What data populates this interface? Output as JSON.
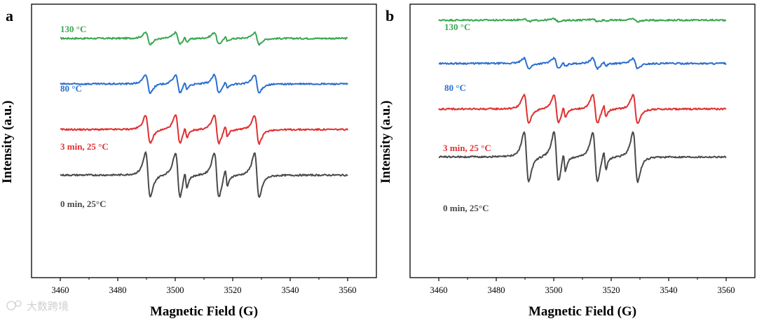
{
  "figure": {
    "watermark": "大数跨境"
  },
  "chart_data": [
    {
      "type": "line",
      "panel": "a",
      "xlabel": "Magnetic Field (G)",
      "ylabel": "Intensity (a.u.)",
      "xlim": [
        3450,
        3570
      ],
      "xticks": [
        3460,
        3480,
        3500,
        3520,
        3540,
        3560
      ],
      "ylim": [
        -7.5,
        4.5
      ],
      "yticks_shown": false,
      "lines": [
        {
          "field": 3490.5,
          "width": 1.4,
          "amp": 1.0
        },
        {
          "field": 3500.9,
          "width": 1.4,
          "amp": 1.0
        },
        {
          "field": 3503.7,
          "width": 0.7,
          "amp": 0.4
        },
        {
          "field": 3514.4,
          "width": 1.4,
          "amp": 1.0
        },
        {
          "field": 3517.8,
          "width": 0.7,
          "amp": 0.4
        },
        {
          "field": 3528.4,
          "width": 1.4,
          "amp": 1.0
        }
      ],
      "series": [
        {
          "name": "130 °C",
          "color": "#3aa852",
          "baseline": 3.0,
          "scale": 0.25
        },
        {
          "name": "80 °C",
          "color": "#2a6fd0",
          "baseline": 1.0,
          "scale": 0.38
        },
        {
          "name": "3 min, 25 °C",
          "color": "#e03030",
          "baseline": -1.0,
          "scale": 0.6
        },
        {
          "name": "0 min, 25°C",
          "color": "#4a4a4a",
          "baseline": -3.0,
          "scale": 0.95
        }
      ]
    },
    {
      "type": "line",
      "panel": "b",
      "xlabel": "Magnetic Field (G)",
      "ylabel": "Intensity (a.u.)",
      "xlim": [
        3450,
        3570
      ],
      "xticks": [
        3460,
        3480,
        3500,
        3520,
        3540,
        3560
      ],
      "ylim": [
        -7.5,
        4.5
      ],
      "yticks_shown": false,
      "lines": [
        {
          "field": 3490.5,
          "width": 1.4,
          "amp": 1.0
        },
        {
          "field": 3500.9,
          "width": 1.4,
          "amp": 1.0
        },
        {
          "field": 3503.7,
          "width": 0.7,
          "amp": 0.4
        },
        {
          "field": 3514.4,
          "width": 1.4,
          "amp": 1.0
        },
        {
          "field": 3517.8,
          "width": 0.7,
          "amp": 0.4
        },
        {
          "field": 3528.4,
          "width": 1.4,
          "amp": 1.0
        }
      ],
      "series": [
        {
          "name": "130 °C",
          "color": "#3aa852",
          "baseline": 3.8,
          "scale": 0.06
        },
        {
          "name": "80 °C",
          "color": "#2a6fd0",
          "baseline": 1.9,
          "scale": 0.22
        },
        {
          "name": "3 min, 25 °C",
          "color": "#e03030",
          "baseline": -0.1,
          "scale": 0.6
        },
        {
          "name": "0 min, 25°C",
          "color": "#4a4a4a",
          "baseline": -2.2,
          "scale": 1.05
        }
      ]
    }
  ]
}
